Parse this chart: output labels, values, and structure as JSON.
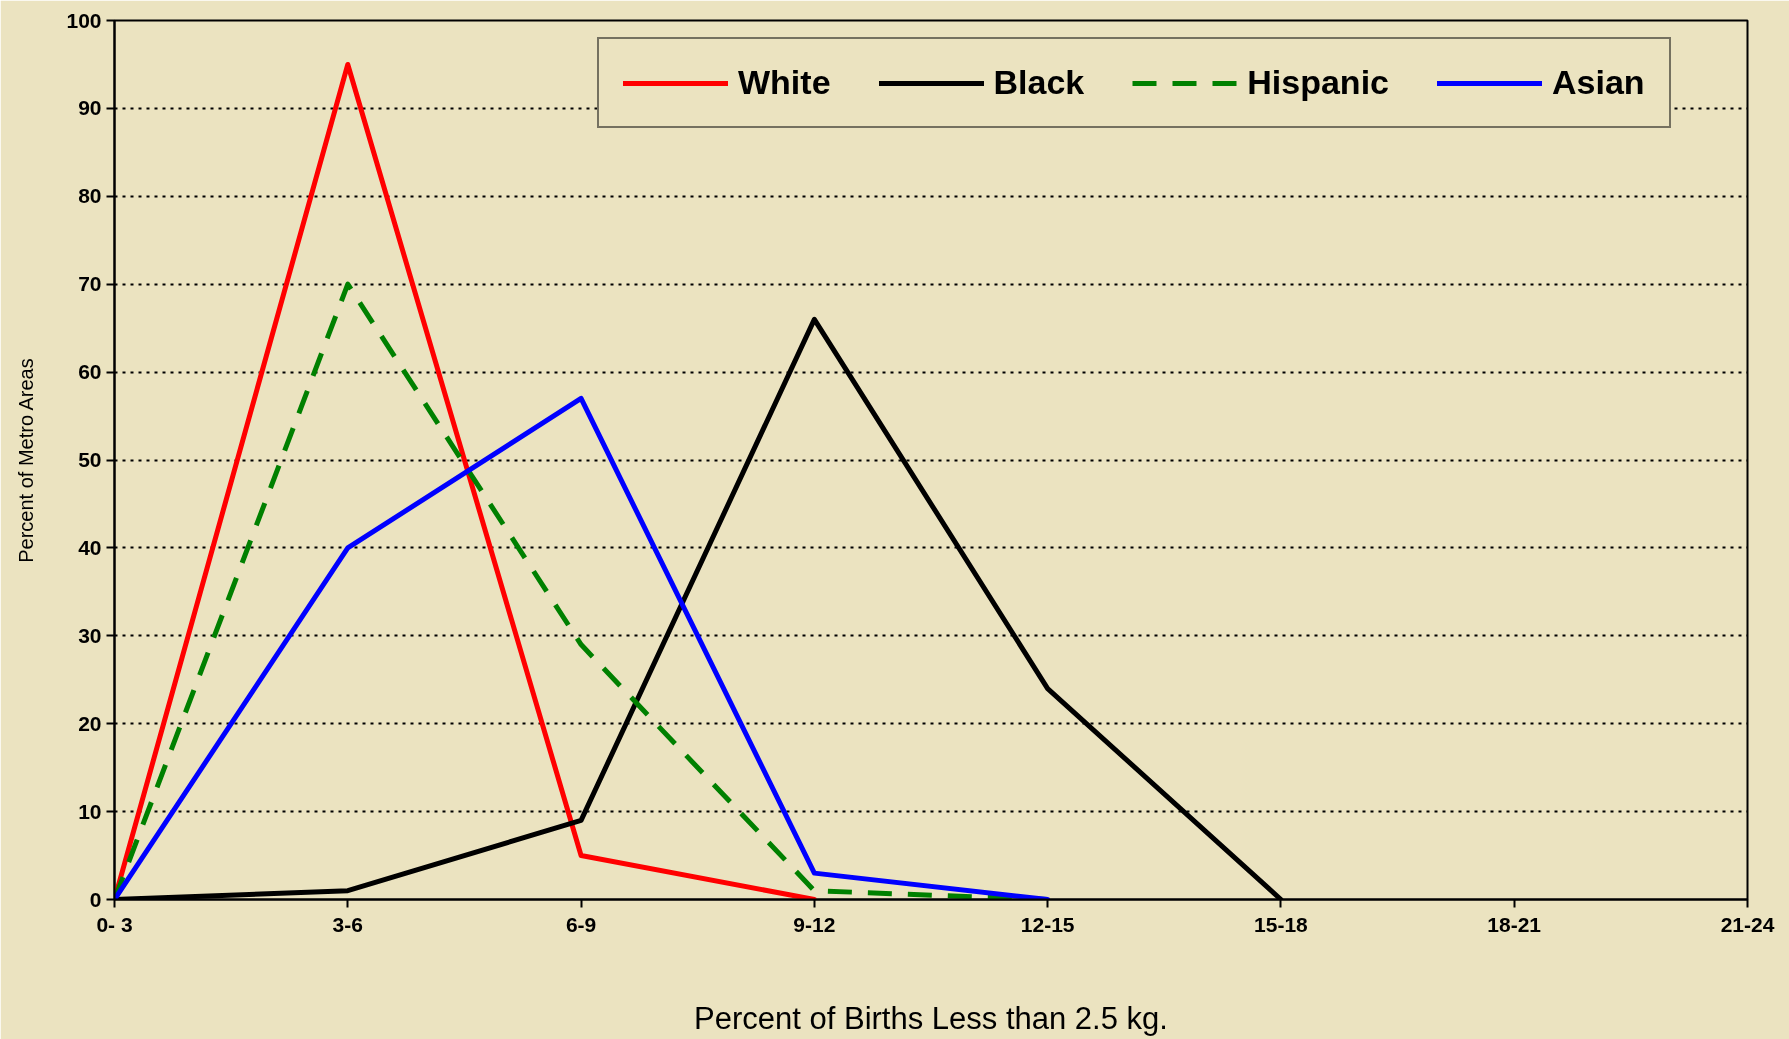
{
  "chart_data": {
    "type": "line",
    "xlabel": "Percent of Births Less than 2.5 kg.",
    "ylabel": "Percent of Metro Areas",
    "categories": [
      "0- 3",
      "3-6",
      "6-9",
      "9-12",
      "12-15",
      "15-18",
      "18-21",
      "21-24"
    ],
    "series": [
      {
        "name": "White",
        "color": "#ff0000",
        "line_style": "solid",
        "values": [
          0,
          95,
          5,
          0,
          null,
          null,
          null,
          null
        ]
      },
      {
        "name": "Black",
        "color": "#000000",
        "line_style": "solid",
        "values": [
          0,
          1,
          9,
          66,
          24,
          0,
          null,
          null
        ]
      },
      {
        "name": "Hispanic",
        "color": "#008000",
        "line_style": "dashed",
        "values": [
          0,
          70,
          29,
          1,
          0,
          null,
          null,
          null
        ]
      },
      {
        "name": "Asian",
        "color": "#0000ff",
        "line_style": "solid",
        "values": [
          0,
          40,
          57,
          3,
          0,
          null,
          null,
          null
        ]
      }
    ],
    "ylim": [
      0,
      100
    ],
    "yticks": [
      0,
      10,
      20,
      30,
      40,
      50,
      60,
      70,
      80,
      90,
      100
    ],
    "grid": "y",
    "legend": "top right"
  }
}
